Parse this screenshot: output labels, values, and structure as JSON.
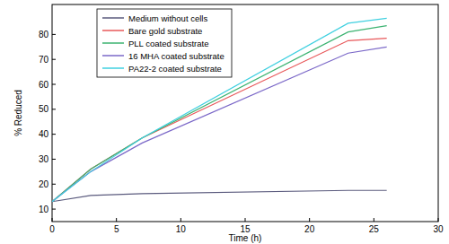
{
  "chart_data": {
    "type": "line",
    "x_label": "Time (h)",
    "y_label": "% Reduced",
    "x": [
      0,
      3,
      7,
      23,
      26
    ],
    "series": [
      {
        "name": "Medium without cells",
        "color": "#5b5b7e",
        "values": [
          13,
          15.5,
          16.2,
          17.5,
          17.5
        ]
      },
      {
        "name": "Bare gold substrate",
        "color": "#e8585a",
        "values": [
          13,
          26,
          38.5,
          77.5,
          78.5
        ]
      },
      {
        "name": "PLL coated substrate",
        "color": "#3cb371",
        "values": [
          13,
          26,
          38.5,
          81,
          83.5
        ]
      },
      {
        "name": "16 MHA coated substrate",
        "color": "#7b68c8",
        "values": [
          13,
          25,
          36.5,
          72.5,
          75
        ]
      },
      {
        "name": "PA22-2 coated substrate",
        "color": "#40d0e0",
        "values": [
          13,
          25,
          38.5,
          84.5,
          86.5
        ]
      }
    ],
    "xlim": [
      0,
      30
    ],
    "xticks": [
      0,
      5,
      10,
      15,
      20,
      25,
      30
    ],
    "ylim": [
      5,
      92
    ],
    "yticks": [
      10,
      20,
      30,
      40,
      50,
      60,
      70,
      80
    ],
    "legend": "upper left",
    "grid": false
  }
}
